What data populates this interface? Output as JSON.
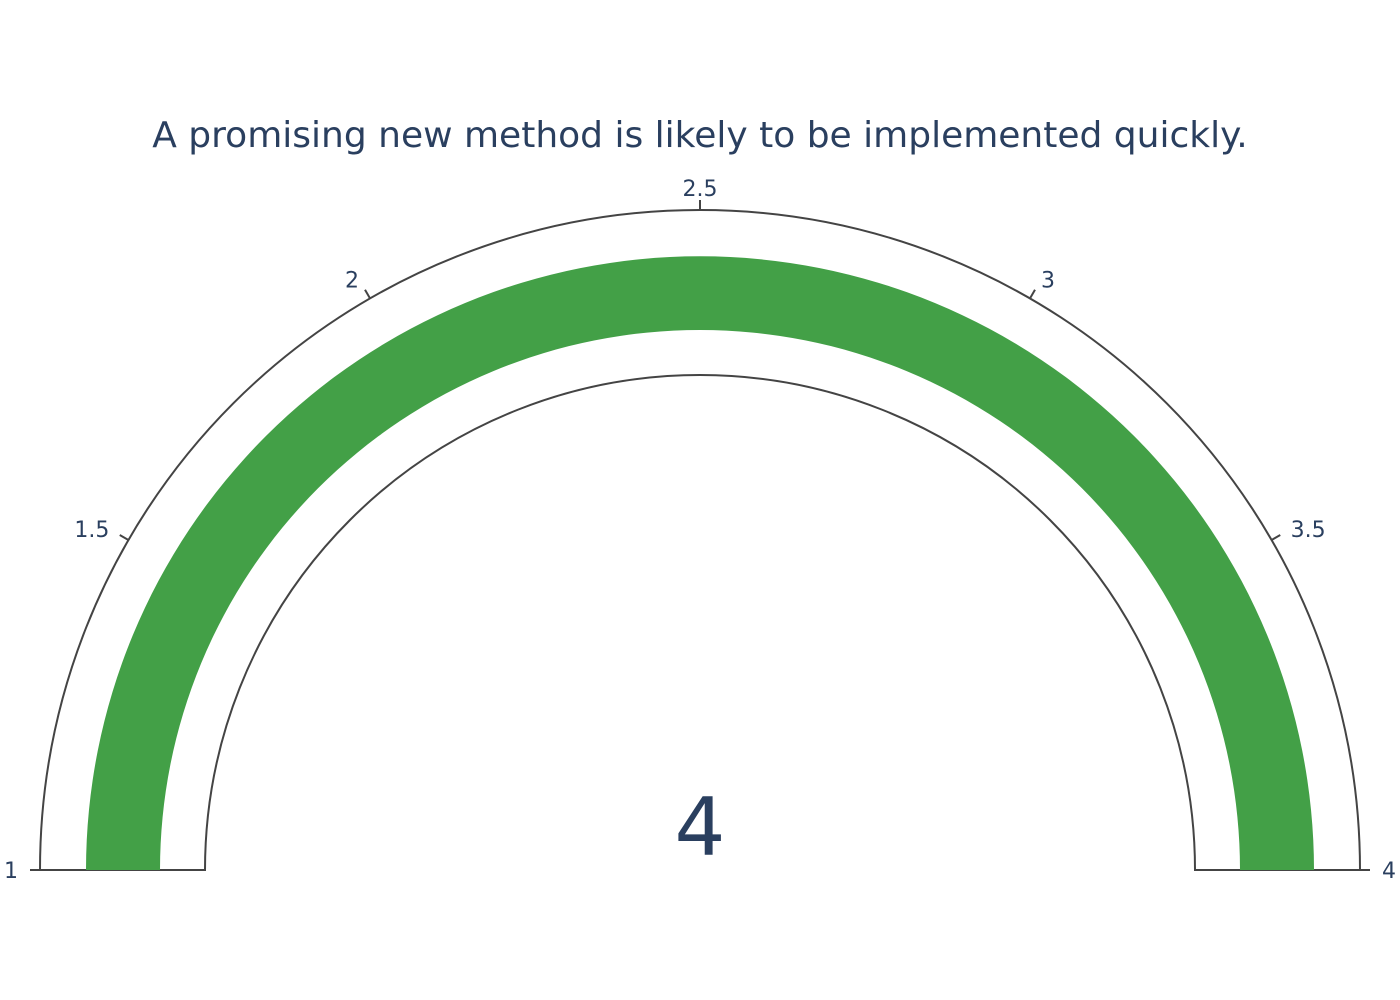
{
  "chart_data": {
    "type": "gauge",
    "title": "A promising new method is likely to be implemented quickly.",
    "value": 4,
    "value_label": "4",
    "range": [
      1,
      4
    ],
    "ticks": [
      {
        "value": 1,
        "label": "1"
      },
      {
        "value": 1.5,
        "label": "1.5"
      },
      {
        "value": 2,
        "label": "2"
      },
      {
        "value": 2.5,
        "label": "2.5"
      },
      {
        "value": 3,
        "label": "3"
      },
      {
        "value": 3.5,
        "label": "3.5"
      },
      {
        "value": 4,
        "label": "4"
      }
    ],
    "bar_color": "#43a047",
    "outline_color": "#444444",
    "text_color": "#2a3f5f"
  }
}
